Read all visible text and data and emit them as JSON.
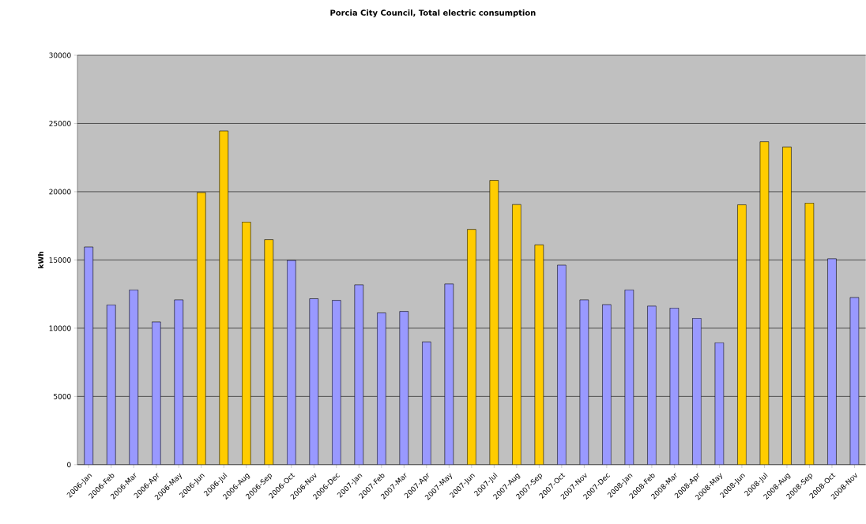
{
  "chart_data": {
    "type": "bar",
    "title": "Porcia City Council, Total electric consumption",
    "ylabel": "kWh",
    "categories": [
      "2006-Jan",
      "2006-Feb",
      "2006-Mar",
      "2006-Apr",
      "2006-May",
      "2006-Jun",
      "2006-Jul",
      "2006-Aug",
      "2006-Sep",
      "2006-Oct",
      "2006-Nov",
      "2006-Dec",
      "2007-Jan",
      "2007-Feb",
      "2007-Mar",
      "2007-Apr",
      "2007-May",
      "2007-Jun",
      "2007-Jul",
      "2007-Aug",
      "2007-Sep",
      "2007-Oct",
      "2007-Nov",
      "2007-Dec",
      "2008-Jan",
      "2008-Feb",
      "2008-Mar",
      "2008-Apr",
      "2008-May",
      "2008-Jun",
      "2008-Jul",
      "2008-Aug",
      "2008-Sep",
      "2008-Oct",
      "2008-Nov"
    ],
    "values": [
      15950,
      11710,
      12810,
      10460,
      12080,
      19940,
      24450,
      17780,
      16490,
      14970,
      12160,
      12040,
      13180,
      11120,
      11230,
      9000,
      13240,
      17240,
      20830,
      19060,
      16110,
      14620,
      12080,
      11730,
      12810,
      11620,
      11480,
      10730,
      8940,
      19040,
      23660,
      23280,
      19170,
      15090,
      12250
    ],
    "colors": [
      "#9999ff",
      "#9999ff",
      "#9999ff",
      "#9999ff",
      "#9999ff",
      "#ffcc00",
      "#ffcc00",
      "#ffcc00",
      "#ffcc00",
      "#9999ff",
      "#9999ff",
      "#9999ff",
      "#9999ff",
      "#9999ff",
      "#9999ff",
      "#9999ff",
      "#9999ff",
      "#ffcc00",
      "#ffcc00",
      "#ffcc00",
      "#ffcc00",
      "#9999ff",
      "#9999ff",
      "#9999ff",
      "#9999ff",
      "#9999ff",
      "#9999ff",
      "#9999ff",
      "#9999ff",
      "#ffcc00",
      "#ffcc00",
      "#ffcc00",
      "#ffcc00",
      "#9999ff",
      "#9999ff"
    ],
    "ylim": [
      0,
      30000
    ],
    "yticks": [
      0,
      5000,
      10000,
      15000,
      20000,
      25000,
      30000
    ],
    "grid": "y"
  }
}
